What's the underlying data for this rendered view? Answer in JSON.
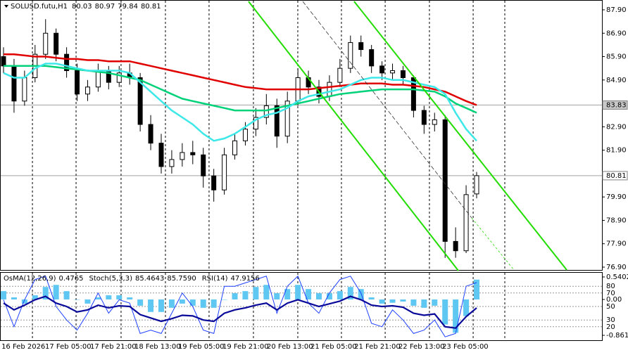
{
  "chart_data": {
    "type": "candlestick",
    "title": "SOLUSD.futu,H1",
    "open": [
      85.9,
      85.5,
      84.0,
      85.0,
      86.0,
      86.9,
      86.0,
      85.3,
      84.3,
      84.6,
      85.3,
      84.8,
      85.2,
      85.0,
      83.0,
      82.2,
      81.2,
      81.5,
      81.8,
      81.7,
      80.8,
      80.2,
      81.7,
      82.3,
      82.8,
      83.3,
      83.8,
      82.5,
      84.0,
      85.0,
      84.6,
      84.2,
      84.8,
      85.4,
      86.5,
      86.2,
      85.5,
      85.2,
      85.3,
      85.0,
      83.6,
      83.0,
      83.2,
      78.0,
      77.6,
      80.03
    ],
    "high": [
      86.3,
      85.8,
      85.3,
      86.4,
      87.5,
      87.1,
      86.3,
      85.6,
      84.9,
      85.6,
      85.5,
      85.5,
      85.6,
      85.2,
      83.4,
      82.6,
      81.9,
      82.2,
      82.3,
      82.0,
      81.1,
      82.0,
      82.6,
      83.1,
      83.7,
      84.3,
      84.1,
      84.4,
      85.4,
      85.3,
      84.9,
      85.1,
      85.8,
      86.8,
      86.8,
      86.4,
      85.7,
      85.6,
      85.5,
      85.1,
      83.8,
      83.5,
      83.4,
      78.6,
      80.4,
      80.97
    ],
    "low": [
      85.2,
      83.5,
      83.8,
      84.8,
      85.8,
      85.7,
      85.0,
      84.0,
      84.0,
      84.4,
      84.5,
      84.6,
      84.7,
      82.7,
      81.9,
      80.9,
      80.9,
      81.2,
      81.3,
      80.3,
      79.7,
      80.0,
      81.5,
      82.1,
      82.5,
      83.0,
      82.0,
      82.2,
      83.8,
      84.3,
      83.9,
      84.0,
      84.6,
      85.2,
      85.9,
      85.2,
      84.9,
      84.9,
      84.7,
      83.3,
      82.6,
      82.7,
      77.3,
      77.3,
      77.5,
      79.84
    ],
    "close": [
      85.5,
      84.0,
      85.0,
      86.0,
      86.9,
      86.0,
      85.3,
      84.3,
      84.6,
      85.3,
      84.8,
      85.2,
      85.0,
      83.0,
      82.2,
      81.2,
      81.5,
      81.8,
      81.7,
      80.8,
      80.2,
      81.7,
      82.3,
      82.8,
      83.3,
      83.8,
      82.5,
      84.0,
      85.0,
      84.6,
      84.2,
      84.8,
      85.4,
      86.5,
      86.2,
      85.5,
      85.2,
      85.3,
      85.0,
      83.6,
      83.0,
      83.2,
      78.0,
      77.6,
      80.0,
      80.81
    ],
    "moving_averages": [
      {
        "color": "#e00000",
        "width": 2.5,
        "values": [
          86.0,
          86.0,
          85.95,
          85.9,
          85.9,
          85.85,
          85.8,
          85.8,
          85.75,
          85.75,
          85.7,
          85.7,
          85.7,
          85.6,
          85.5,
          85.4,
          85.3,
          85.2,
          85.1,
          85.0,
          84.9,
          84.8,
          84.7,
          84.6,
          84.55,
          84.5,
          84.5,
          84.5,
          84.5,
          84.5,
          84.55,
          84.6,
          84.65,
          84.7,
          84.75,
          84.75,
          84.75,
          84.7,
          84.7,
          84.65,
          84.6,
          84.5,
          84.4,
          84.2,
          84.0,
          83.83
        ]
      },
      {
        "color": "#00d27a",
        "width": 2.5,
        "values": [
          85.5,
          85.5,
          85.5,
          85.5,
          85.5,
          85.45,
          85.4,
          85.35,
          85.3,
          85.25,
          85.2,
          85.1,
          85.0,
          84.9,
          84.7,
          84.5,
          84.3,
          84.1,
          84.0,
          83.9,
          83.8,
          83.7,
          83.6,
          83.6,
          83.6,
          83.6,
          83.7,
          83.8,
          83.9,
          84.0,
          84.1,
          84.2,
          84.3,
          84.35,
          84.4,
          84.45,
          84.5,
          84.5,
          84.5,
          84.5,
          84.45,
          84.4,
          84.2,
          83.9,
          83.7,
          83.5
        ]
      },
      {
        "color": "#3ee8e8",
        "width": 2.5,
        "values": [
          85.2,
          85.0,
          85.0,
          85.4,
          85.6,
          85.6,
          85.5,
          85.4,
          85.3,
          85.3,
          85.3,
          85.3,
          85.2,
          84.8,
          84.4,
          84.0,
          83.6,
          83.3,
          83.0,
          82.6,
          82.3,
          82.4,
          82.6,
          82.9,
          83.2,
          83.4,
          83.5,
          83.7,
          84.0,
          84.2,
          84.3,
          84.4,
          84.5,
          84.7,
          84.9,
          85.0,
          85.0,
          84.9,
          84.9,
          84.8,
          84.7,
          84.6,
          84.3,
          83.5,
          82.8,
          82.3
        ]
      }
    ],
    "ylim": [
      76.75,
      88.32
    ],
    "yticks": [
      {
        "value": 87.9,
        "label": "87.90"
      },
      {
        "value": 86.9,
        "label": "86.90"
      },
      {
        "value": 85.9,
        "label": "85.90"
      },
      {
        "value": 84.9,
        "label": "84.90"
      },
      {
        "value": 82.9,
        "label": "82.90"
      },
      {
        "value": 81.9,
        "label": "81.90"
      },
      {
        "value": 79.9,
        "label": "79.90"
      },
      {
        "value": 78.9,
        "label": "78.90"
      },
      {
        "value": 77.9,
        "label": "77.90"
      },
      {
        "value": 76.9,
        "label": "76.90"
      }
    ],
    "price_levels": [
      {
        "value": 83.83,
        "label": "83.83"
      },
      {
        "value": 80.81,
        "label": "80.81"
      }
    ],
    "xticks": [
      {
        "value": 2.75,
        "label": "16 Feb 2026"
      },
      {
        "value": 6.9,
        "label": "17 Feb 05:00"
      },
      {
        "value": 11.18,
        "label": "17 Feb 21:00"
      },
      {
        "value": 15.4,
        "label": "18 Feb 13:00"
      },
      {
        "value": 19.55,
        "label": "19 Feb 05:00"
      },
      {
        "value": 23.77,
        "label": "19 Feb 21:00"
      },
      {
        "value": 27.99,
        "label": "20 Feb 13:00"
      },
      {
        "value": 32.14,
        "label": "21 Feb 05:00"
      },
      {
        "value": 36.3,
        "label": "21 Feb 21:00"
      },
      {
        "value": 40.51,
        "label": "22 Feb 13:00"
      },
      {
        "value": 44.67,
        "label": "23 Feb 05:00"
      }
    ],
    "indicators": {
      "osma_name": "OsMA(12,26,9)",
      "stoch_name": "Stoch(5,3,3)",
      "stoch_signal": {
        "value": 85.759,
        "label": "85.7590"
      },
      "rsi_name": "RSI(14)",
      "osma": {
        "color": "#5ec8f2",
        "values": [
          0.2,
          0.05,
          -0.1,
          0.1,
          0.3,
          0.35,
          0.2,
          0.0,
          -0.1,
          0.05,
          0.1,
          0.1,
          0.05,
          -0.15,
          -0.3,
          -0.3,
          -0.2,
          -0.1,
          -0.15,
          -0.2,
          -0.2,
          0.0,
          0.15,
          0.2,
          0.3,
          0.35,
          0.15,
          0.25,
          0.35,
          0.25,
          0.15,
          0.15,
          0.2,
          0.3,
          0.25,
          0.05,
          -0.1,
          -0.08,
          -0.05,
          -0.15,
          -0.2,
          -0.15,
          -0.6,
          -0.8,
          -0.4,
          0.4765
        ]
      },
      "stoch": {
        "color": "#1f3fff",
        "values": [
          60,
          20,
          60,
          90,
          95,
          50,
          30,
          15,
          40,
          70,
          40,
          60,
          55,
          10,
          15,
          10,
          40,
          70,
          50,
          15,
          10,
          80,
          80,
          85,
          90,
          95,
          40,
          80,
          95,
          55,
          40,
          70,
          90,
          95,
          70,
          25,
          20,
          45,
          30,
          10,
          15,
          30,
          5,
          10,
          80,
          85.4643
        ]
      },
      "rsi": {
        "color": "#0a0a9a",
        "values": [
          55,
          45,
          52,
          60,
          65,
          55,
          50,
          42,
          45,
          52,
          48,
          51,
          50,
          38,
          33,
          28,
          32,
          37,
          36,
          30,
          28,
          40,
          45,
          48,
          52,
          55,
          45,
          55,
          60,
          55,
          50,
          54,
          58,
          65,
          60,
          52,
          50,
          51,
          49,
          40,
          37,
          39,
          20,
          18,
          35,
          47.9156
        ]
      },
      "y2lim": [
        -0.996,
        0.658
      ],
      "y2ticks": [
        {
          "value": 0.5402,
          "label": "0.5402"
        },
        {
          "value": 0,
          "label": "0.00"
        },
        {
          "value": -0.861,
          "label": "-0.861"
        }
      ],
      "y3lim": [
        0,
        100
      ],
      "y3ticks": [
        80,
        70,
        50,
        30,
        20
      ]
    }
  }
}
